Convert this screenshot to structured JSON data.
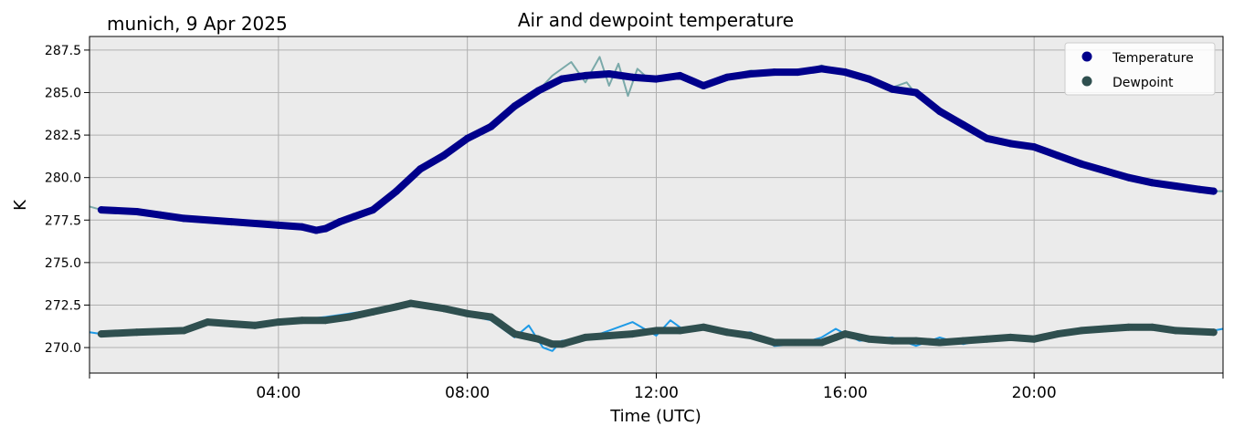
{
  "chart_data": {
    "type": "line",
    "title": "Air and dewpoint temperature",
    "annotation": "munich, 9 Apr 2025",
    "xlabel": "Time (UTC)",
    "ylabel": "K",
    "xlim": [
      0,
      24
    ],
    "ylim": [
      268.5,
      288.3
    ],
    "x_ticks": [
      {
        "value": 0,
        "label": ""
      },
      {
        "value": 4,
        "label": "04:00"
      },
      {
        "value": 8,
        "label": "08:00"
      },
      {
        "value": 12,
        "label": "12:00"
      },
      {
        "value": 16,
        "label": "16:00"
      },
      {
        "value": 20,
        "label": "20:00"
      },
      {
        "value": 24,
        "label": ""
      }
    ],
    "y_ticks": [
      {
        "value": 270.0,
        "label": "270.0"
      },
      {
        "value": 272.5,
        "label": "272.5"
      },
      {
        "value": 275.0,
        "label": "275.0"
      },
      {
        "value": 277.5,
        "label": "277.5"
      },
      {
        "value": 280.0,
        "label": "280.0"
      },
      {
        "value": 282.5,
        "label": "282.5"
      },
      {
        "value": 285.0,
        "label": "285.0"
      },
      {
        "value": 287.5,
        "label": "287.5"
      }
    ],
    "grid": true,
    "legend_position": "top-right",
    "colors": {
      "plot_bg": "#ebebeb",
      "grid": "#b0b0b0",
      "temperature": "#00008b",
      "temperature_raw": "#7aa9a9",
      "dewpoint": "#2f4f4f",
      "dewpoint_raw": "#1e9ae6"
    },
    "series": [
      {
        "name": "Temperature",
        "x": [
          0.25,
          1.0,
          1.5,
          2.0,
          3.0,
          4.0,
          4.5,
          4.8,
          5.0,
          5.3,
          5.6,
          6.0,
          6.5,
          7.0,
          7.5,
          8.0,
          8.5,
          9.0,
          9.5,
          10.0,
          10.5,
          11.0,
          11.5,
          12.0,
          12.5,
          13.0,
          13.5,
          14.0,
          14.5,
          15.0,
          15.5,
          16.0,
          16.5,
          17.0,
          17.5,
          18.0,
          18.5,
          19.0,
          19.5,
          20.0,
          20.5,
          21.0,
          21.5,
          22.0,
          22.5,
          23.0,
          23.5,
          23.8
        ],
        "y": [
          278.1,
          278.0,
          277.8,
          277.6,
          277.4,
          277.2,
          277.1,
          276.9,
          277.0,
          277.4,
          277.7,
          278.1,
          279.2,
          280.5,
          281.3,
          282.3,
          283.0,
          284.2,
          285.1,
          285.8,
          286.0,
          286.1,
          285.9,
          285.8,
          286.0,
          285.4,
          285.9,
          286.1,
          286.2,
          286.2,
          286.4,
          286.2,
          285.8,
          285.2,
          285.0,
          283.9,
          283.1,
          282.3,
          282.0,
          281.8,
          281.3,
          280.8,
          280.4,
          280.0,
          279.7,
          279.5,
          279.3,
          279.2
        ],
        "raw_x": [
          0.0,
          0.25,
          1.0,
          2.0,
          3.0,
          4.0,
          4.8,
          5.5,
          6.0,
          6.5,
          7.0,
          7.5,
          8.0,
          8.5,
          9.0,
          9.5,
          9.8,
          10.2,
          10.5,
          10.8,
          11.0,
          11.2,
          11.4,
          11.6,
          11.8,
          12.0,
          12.5,
          13.0,
          13.5,
          14.0,
          14.5,
          15.0,
          15.5,
          16.0,
          16.5,
          17.0,
          17.3,
          17.5,
          18.0,
          18.5,
          19.0,
          19.5,
          20.0,
          21.0,
          22.0,
          23.0,
          23.8,
          24.0
        ],
        "raw_y": [
          278.3,
          278.1,
          278.0,
          277.6,
          277.4,
          277.2,
          276.9,
          277.6,
          278.1,
          279.3,
          280.6,
          281.4,
          282.4,
          283.1,
          284.3,
          285.1,
          286.0,
          286.8,
          285.6,
          287.1,
          285.4,
          286.7,
          284.8,
          286.4,
          285.9,
          285.8,
          286.1,
          285.3,
          286.0,
          286.3,
          286.1,
          286.2,
          286.6,
          286.2,
          285.9,
          285.3,
          285.6,
          284.9,
          283.9,
          283.2,
          282.3,
          282.0,
          281.8,
          280.8,
          280.0,
          279.5,
          279.2,
          279.2
        ]
      },
      {
        "name": "Dewpoint",
        "x": [
          0.25,
          1.0,
          2.0,
          2.5,
          3.0,
          3.5,
          4.0,
          4.5,
          5.0,
          5.5,
          6.0,
          6.5,
          6.8,
          7.5,
          8.0,
          8.5,
          9.0,
          9.5,
          9.8,
          10.0,
          10.5,
          11.0,
          11.5,
          12.0,
          12.5,
          13.0,
          13.5,
          14.0,
          14.5,
          15.0,
          15.5,
          15.8,
          16.0,
          16.5,
          17.0,
          17.5,
          18.0,
          18.5,
          19.0,
          19.5,
          20.0,
          20.5,
          21.0,
          21.5,
          22.0,
          22.5,
          23.0,
          23.8
        ],
        "y": [
          270.8,
          270.9,
          271.0,
          271.5,
          271.4,
          271.3,
          271.5,
          271.6,
          271.6,
          271.8,
          272.1,
          272.4,
          272.6,
          272.3,
          272.0,
          271.8,
          270.8,
          270.5,
          270.2,
          270.2,
          270.6,
          270.7,
          270.8,
          271.0,
          271.0,
          271.2,
          270.9,
          270.7,
          270.3,
          270.3,
          270.3,
          270.6,
          270.8,
          270.5,
          270.4,
          270.4,
          270.3,
          270.4,
          270.5,
          270.6,
          270.5,
          270.8,
          271.0,
          271.1,
          271.2,
          271.2,
          271.0,
          270.9
        ],
        "raw_x": [
          0.0,
          0.25,
          1.0,
          2.0,
          2.5,
          3.0,
          3.5,
          4.0,
          5.0,
          5.5,
          6.0,
          6.5,
          6.8,
          7.5,
          8.0,
          8.5,
          9.0,
          9.3,
          9.6,
          9.8,
          10.0,
          10.5,
          11.0,
          11.5,
          12.0,
          12.3,
          12.6,
          13.0,
          13.5,
          14.0,
          14.5,
          15.0,
          15.5,
          15.8,
          16.0,
          16.3,
          17.0,
          17.5,
          18.0,
          18.5,
          19.0,
          20.0,
          21.0,
          22.0,
          23.0,
          23.8,
          24.0
        ],
        "raw_y": [
          270.9,
          270.8,
          271.0,
          271.0,
          271.6,
          271.3,
          271.4,
          271.5,
          271.8,
          272.0,
          272.2,
          272.5,
          272.6,
          272.4,
          271.9,
          271.6,
          270.6,
          271.3,
          270.0,
          269.8,
          270.4,
          270.5,
          271.0,
          271.5,
          270.7,
          271.6,
          271.0,
          271.2,
          270.8,
          270.9,
          270.1,
          270.2,
          270.6,
          271.1,
          270.8,
          270.4,
          270.6,
          270.1,
          270.6,
          270.2,
          270.5,
          270.5,
          270.9,
          271.1,
          271.0,
          271.0,
          271.1
        ]
      }
    ]
  }
}
